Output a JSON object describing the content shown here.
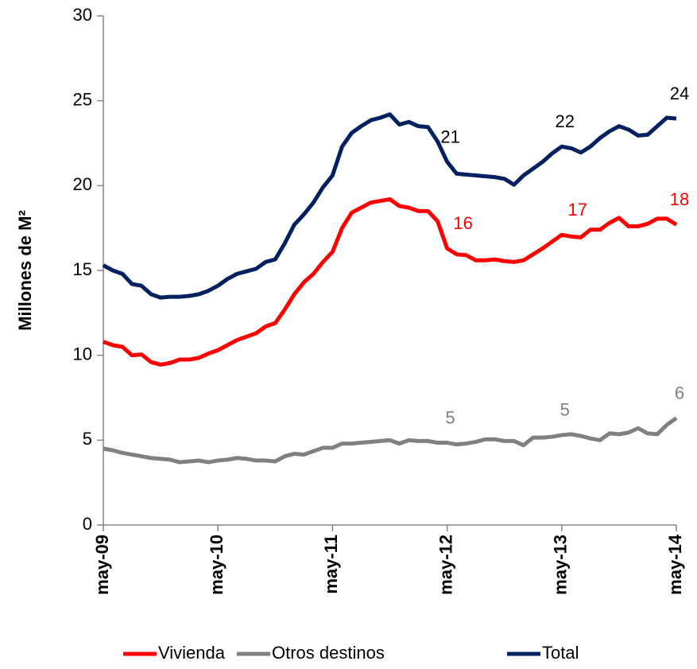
{
  "chart_data": {
    "type": "line",
    "y_axis_label": "Millones de  M²",
    "categories": [
      "may-09",
      null,
      null,
      null,
      null,
      null,
      null,
      null,
      null,
      null,
      null,
      null,
      "may-10",
      null,
      null,
      null,
      null,
      null,
      null,
      null,
      null,
      null,
      null,
      null,
      "may-11",
      null,
      null,
      null,
      null,
      null,
      null,
      null,
      null,
      null,
      null,
      null,
      "may-12",
      null,
      null,
      null,
      null,
      null,
      null,
      null,
      null,
      null,
      null,
      null,
      "may-13",
      null,
      null,
      null,
      null,
      null,
      null,
      null,
      null,
      null,
      null,
      null,
      "may-14"
    ],
    "series": [
      {
        "name": "Vivienda",
        "color": "#ff0000",
        "values": [
          10.8,
          10.6,
          10.5,
          10.0,
          10.05,
          9.6,
          9.45,
          9.55,
          9.75,
          9.75,
          9.85,
          10.1,
          10.3,
          10.6,
          10.9,
          11.1,
          11.3,
          11.7,
          11.9,
          12.7,
          13.6,
          14.3,
          14.8,
          15.5,
          16.1,
          17.5,
          18.4,
          18.7,
          19.0,
          19.1,
          19.2,
          18.8,
          18.7,
          18.5,
          18.5,
          17.9,
          16.3,
          15.95,
          15.9,
          15.6,
          15.6,
          15.65,
          15.55,
          15.5,
          15.6,
          15.95,
          16.3,
          16.7,
          17.1,
          17.0,
          16.95,
          17.4,
          17.4,
          17.8,
          18.1,
          17.6,
          17.6,
          17.75,
          18.05,
          18.05,
          17.7
        ],
        "value_labels": [
          null,
          null,
          null,
          null,
          null,
          null,
          null,
          null,
          null,
          null,
          null,
          null,
          null,
          null,
          null,
          null,
          null,
          null,
          null,
          null,
          null,
          null,
          null,
          null,
          null,
          null,
          null,
          null,
          null,
          null,
          null,
          null,
          null,
          null,
          null,
          null,
          "16",
          null,
          null,
          null,
          null,
          null,
          null,
          null,
          null,
          null,
          null,
          null,
          "17",
          null,
          null,
          null,
          null,
          null,
          null,
          null,
          null,
          null,
          null,
          null,
          "18"
        ]
      },
      {
        "name": "Otros destinos",
        "color": "#808080",
        "values": [
          4.5,
          4.4,
          4.25,
          4.15,
          4.05,
          3.95,
          3.9,
          3.85,
          3.7,
          3.75,
          3.8,
          3.7,
          3.8,
          3.85,
          3.95,
          3.9,
          3.8,
          3.8,
          3.75,
          4.05,
          4.2,
          4.15,
          4.35,
          4.55,
          4.55,
          4.8,
          4.8,
          4.85,
          4.9,
          4.95,
          5.0,
          4.8,
          5.0,
          4.95,
          4.95,
          4.85,
          4.85,
          4.75,
          4.8,
          4.9,
          5.05,
          5.05,
          4.95,
          4.95,
          4.7,
          5.15,
          5.15,
          5.2,
          5.3,
          5.35,
          5.25,
          5.1,
          5.0,
          5.4,
          5.35,
          5.45,
          5.7,
          5.4,
          5.35,
          5.9,
          6.3
        ],
        "value_labels": [
          null,
          null,
          null,
          null,
          null,
          null,
          null,
          null,
          null,
          null,
          null,
          null,
          null,
          null,
          null,
          null,
          null,
          null,
          null,
          null,
          null,
          null,
          null,
          null,
          null,
          null,
          null,
          null,
          null,
          null,
          null,
          null,
          null,
          null,
          null,
          null,
          "5",
          null,
          null,
          null,
          null,
          null,
          null,
          null,
          null,
          null,
          null,
          null,
          "5",
          null,
          null,
          null,
          null,
          null,
          null,
          null,
          null,
          null,
          null,
          null,
          "6"
        ]
      },
      {
        "name": "Total",
        "color": "#002060",
        "values": [
          15.3,
          15.0,
          14.8,
          14.2,
          14.1,
          13.6,
          13.4,
          13.45,
          13.45,
          13.5,
          13.6,
          13.8,
          14.1,
          14.5,
          14.8,
          14.95,
          15.1,
          15.5,
          15.65,
          16.6,
          17.7,
          18.3,
          19.0,
          19.9,
          20.6,
          22.3,
          23.1,
          23.5,
          23.85,
          24.0,
          24.2,
          23.6,
          23.75,
          23.5,
          23.45,
          22.6,
          21.4,
          20.7,
          20.65,
          20.6,
          20.55,
          20.5,
          20.4,
          20.05,
          20.6,
          21.0,
          21.4,
          21.9,
          22.3,
          22.2,
          21.95,
          22.3,
          22.8,
          23.2,
          23.5,
          23.3,
          22.95,
          23.0,
          23.5,
          24.0,
          23.95
        ],
        "value_labels": [
          null,
          null,
          null,
          null,
          null,
          null,
          null,
          null,
          null,
          null,
          null,
          null,
          null,
          null,
          null,
          null,
          null,
          null,
          null,
          null,
          null,
          null,
          null,
          null,
          null,
          null,
          null,
          null,
          null,
          null,
          null,
          null,
          null,
          null,
          null,
          null,
          "21",
          null,
          null,
          null,
          null,
          null,
          null,
          null,
          null,
          null,
          null,
          null,
          "22",
          null,
          null,
          null,
          null,
          null,
          null,
          null,
          null,
          null,
          null,
          null,
          "24"
        ]
      }
    ],
    "ylim": [
      0,
      30
    ],
    "yticks": [
      0,
      5,
      10,
      15,
      20,
      25,
      30
    ],
    "grid": false,
    "legend": "bottom"
  }
}
